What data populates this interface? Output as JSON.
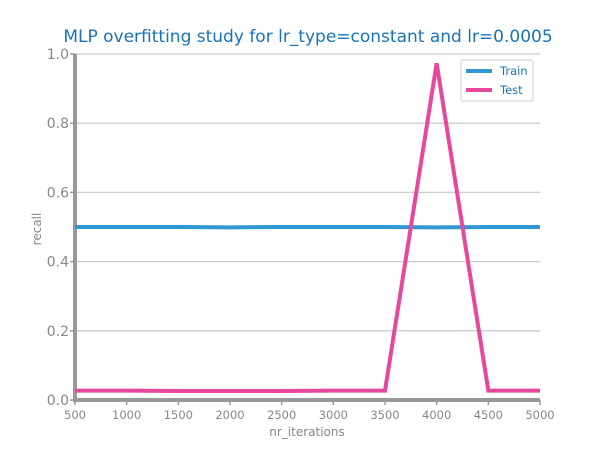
{
  "chart_data": {
    "type": "line",
    "title": "MLP overfitting study for lr_type=constant and lr=0.0005",
    "xlabel": "nr_iterations",
    "ylabel": "recall",
    "x": [
      500,
      1000,
      1500,
      2000,
      2500,
      3000,
      3500,
      4000,
      4500,
      5000
    ],
    "xticks": [
      "500",
      "1000",
      "1500",
      "2000",
      "2500",
      "3000",
      "3500",
      "4000",
      "4500",
      "5000"
    ],
    "yticks": [
      "0.0",
      "0.2",
      "0.4",
      "0.6",
      "0.8",
      "1.0"
    ],
    "xlim": [
      500,
      5000
    ],
    "ylim": [
      0,
      1
    ],
    "grid": "horizontal",
    "legend_position": "top-right",
    "series": [
      {
        "name": "Train",
        "color": "#2e97d4",
        "values": [
          0.5,
          0.5,
          0.5,
          0.499,
          0.5,
          0.5,
          0.5,
          0.499,
          0.5,
          0.5
        ]
      },
      {
        "name": "Test",
        "color": "#e8489b",
        "values": [
          0.027,
          0.027,
          0.026,
          0.026,
          0.026,
          0.027,
          0.027,
          0.973,
          0.027,
          0.027
        ]
      }
    ],
    "colors": {
      "title": "#1a73b8",
      "axis_text": "#888888",
      "axis_line": "#999999",
      "grid": "#cccccc"
    }
  }
}
